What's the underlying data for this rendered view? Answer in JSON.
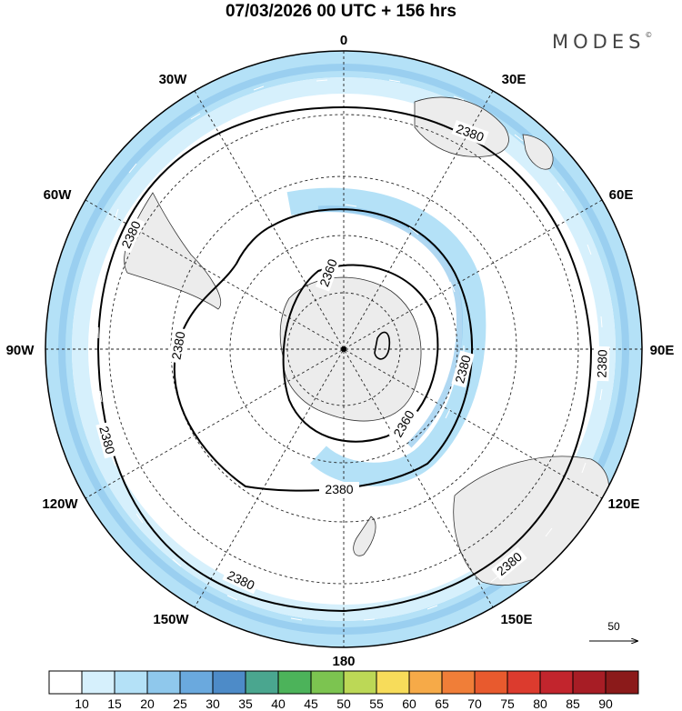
{
  "title": "07/03/2026  00 UTC  + 156 hrs",
  "brand": "MODES",
  "brand_mark": "©",
  "longitude_labels": {
    "0": "0",
    "30E": "30E",
    "60E": "60E",
    "90E": "90E",
    "120E": "120E",
    "150E": "150E",
    "180": "180",
    "150W": "150W",
    "120W": "120W",
    "90W": "90W",
    "60W": "60W",
    "30W": "30W"
  },
  "contour_labels": {
    "c1": "2380",
    "c2": "2380",
    "c3": "2380",
    "c4": "2380",
    "c5": "2380",
    "c6": "2380",
    "c7": "2380",
    "c8": "2380",
    "c9": "2380",
    "c10": "2360",
    "c11": "2360"
  },
  "reference_vector": {
    "label": "50"
  },
  "colorbar": {
    "levels": [
      "10",
      "15",
      "20",
      "25",
      "30",
      "35",
      "40",
      "45",
      "50",
      "55",
      "60",
      "65",
      "70",
      "75",
      "80",
      "85",
      "90"
    ],
    "colors": [
      "#ffffff",
      "#d6f0fc",
      "#b4e1f7",
      "#8fc8ec",
      "#6aa9de",
      "#4d8bc8",
      "#4aa68f",
      "#4cb35a",
      "#7cc450",
      "#bcd856",
      "#f7dc5a",
      "#f6aa48",
      "#f07e38",
      "#e85a2e",
      "#dc3b2e",
      "#c2252d",
      "#a71d25",
      "#8b1a1a"
    ]
  },
  "colors": {
    "jet_light": "#d6f0fc",
    "jet_medium": "#b4e1f7",
    "land": "#ececec"
  }
}
